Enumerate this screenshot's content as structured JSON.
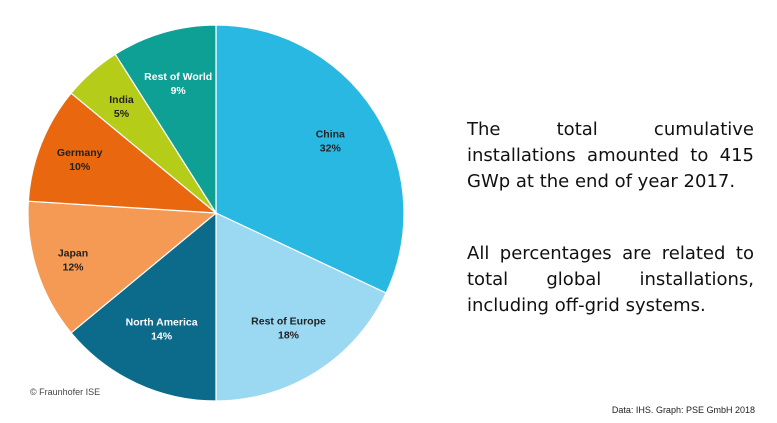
{
  "chart_data": {
    "type": "pie",
    "slices": [
      {
        "name": "China",
        "pct_label": "32%",
        "value": 32,
        "color": "#29b8e2",
        "label_color": "#222222"
      },
      {
        "name": "Rest of Europe",
        "pct_label": "18%",
        "value": 18,
        "color": "#9bd8f2",
        "label_color": "#222222"
      },
      {
        "name": "North America",
        "pct_label": "14%",
        "value": 14,
        "color": "#0c6b8a",
        "label_color": "#ffffff"
      },
      {
        "name": "Japan",
        "pct_label": "12%",
        "value": 12,
        "color": "#f59a55",
        "label_color": "#222222"
      },
      {
        "name": "Germany",
        "pct_label": "10%",
        "value": 10,
        "color": "#e8670f",
        "label_color": "#222222"
      },
      {
        "name": "India",
        "pct_label": "5%",
        "value": 5,
        "color": "#b5cc18",
        "label_color": "#222222"
      },
      {
        "name": "Rest of World",
        "pct_label": "9%",
        "value": 9,
        "color": "#0e9f95",
        "label_color": "#ffffff"
      }
    ]
  },
  "notes": {
    "para1": "The total cumulative installations amounted to 415 GWp at the end of year 2017.",
    "para2": "All percentages are related to total global installations, including off-grid systems."
  },
  "footer": {
    "copyright": "© Fraunhofer ISE",
    "source": "Data: IHS. Graph: PSE GmbH 2018"
  }
}
